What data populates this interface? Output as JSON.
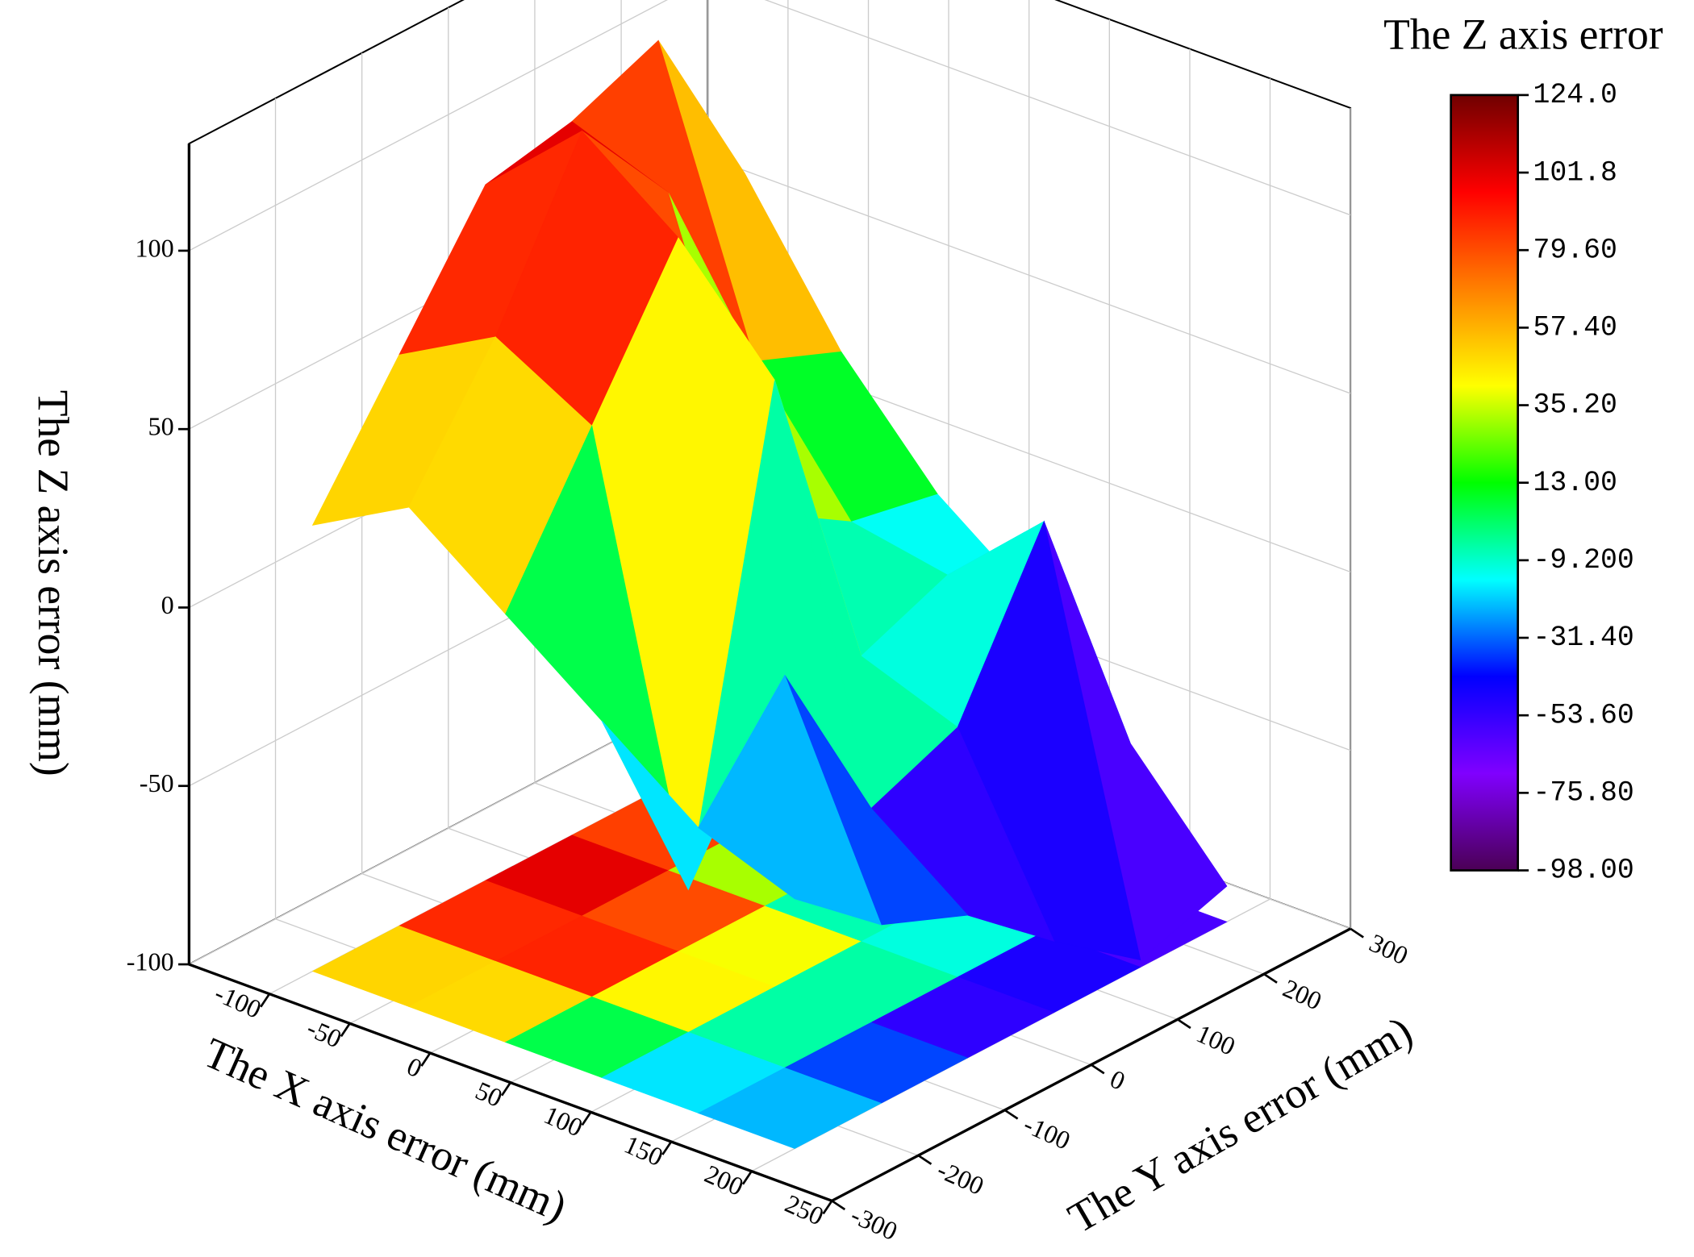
{
  "chart_data": {
    "type": "surface3d",
    "zlabel": "The Z axis error (mm)",
    "xlabel": "The X axis error (mm)",
    "ylabel": "The Y axis error (mm)",
    "colorbar_title": "The Z axis error",
    "x": [
      -100,
      -40,
      20,
      80,
      140,
      200
    ],
    "y": [
      -250,
      -150,
      -50,
      50,
      150,
      250
    ],
    "z": [
      [
        25,
        60,
        95,
        100,
        110,
        60
      ],
      [
        40,
        75,
        120,
        90,
        30,
        20
      ],
      [
        20,
        60,
        100,
        10,
        -5,
        -10
      ],
      [
        0,
        -60,
        70,
        -20,
        -10,
        -30
      ],
      [
        -20,
        10,
        -40,
        -30,
        15,
        -60
      ],
      [
        -30,
        -50,
        -60,
        -80,
        -98,
        -90
      ]
    ],
    "xlim": [
      -150,
      250
    ],
    "xticks": [
      -100,
      -50,
      0,
      50,
      100,
      150,
      200,
      250
    ],
    "ylim": [
      -300,
      300
    ],
    "yticks": [
      -300,
      -200,
      -100,
      0,
      100,
      200,
      300
    ],
    "zlim": [
      -100,
      130
    ],
    "zticks": [
      -100,
      -50,
      0,
      50,
      100
    ],
    "clim": [
      -98,
      124
    ],
    "cticks": [
      {
        "value": 124,
        "label": "124.0"
      },
      {
        "value": 101.8,
        "label": "101.8"
      },
      {
        "value": 79.6,
        "label": "79.60"
      },
      {
        "value": 57.4,
        "label": "57.40"
      },
      {
        "value": 35.2,
        "label": "35.20"
      },
      {
        "value": 13,
        "label": "13.00"
      },
      {
        "value": -9.2,
        "label": "-9.200"
      },
      {
        "value": -31.4,
        "label": "-31.40"
      },
      {
        "value": -53.6,
        "label": "-53.60"
      },
      {
        "value": -75.8,
        "label": "-75.80"
      },
      {
        "value": -98,
        "label": "-98.00"
      }
    ],
    "colormap": [
      "#4b0055",
      "#8000ff",
      "#0000ff",
      "#00ffff",
      "#00ff00",
      "#ffff00",
      "#ff8000",
      "#ff0000",
      "#700000"
    ],
    "grid": true
  }
}
